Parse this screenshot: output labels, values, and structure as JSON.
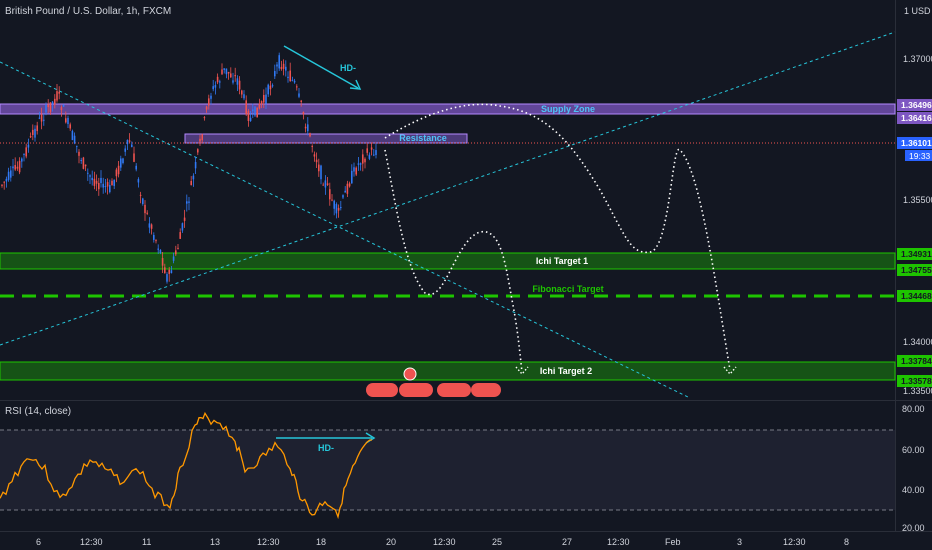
{
  "header": {
    "symbol_title": "British Pound / U.S. Dollar, 1h, FXCM",
    "currency": "1 USD"
  },
  "price_axis": {
    "ticks": [
      "1.37000",
      "1.35500",
      "1.34000",
      "1.33500"
    ],
    "markers": {
      "supply_top": "1.36496",
      "supply_bottom": "1.36416",
      "current": "1.36101",
      "countdown": "19:33",
      "ichi1_top": "1.34931",
      "ichi1_bottom": "1.34755",
      "fibonacci": "1.34468",
      "ichi2_top": "1.33784",
      "ichi2_bottom": "1.33578"
    }
  },
  "zones": {
    "supply": "Supply Zone",
    "resistance": "Resistance",
    "ichi1": "Ichi Target 1",
    "fibonacci": "Fibonacci Target",
    "ichi2": "Ichi Target 2"
  },
  "annotations": {
    "hd_main": "HD-",
    "hd_rsi": "HD-"
  },
  "rsi": {
    "title": "RSI (14, close)",
    "ticks": [
      "80.00",
      "60.00",
      "40.00",
      "20.00"
    ]
  },
  "time_axis": {
    "ticks": [
      "6",
      "12:30",
      "11",
      "13",
      "12:30",
      "18",
      "20",
      "12:30",
      "25",
      "27",
      "12:30",
      "Feb",
      "3",
      "12:30",
      "8"
    ]
  },
  "colors": {
    "background": "#131722",
    "up_candle": "#3179f5",
    "down_candle": "#ef5350",
    "supply": "#7e57c2",
    "target": "#1ec400",
    "trend": "#26c6da",
    "rsi_line": "#ff9800"
  }
}
